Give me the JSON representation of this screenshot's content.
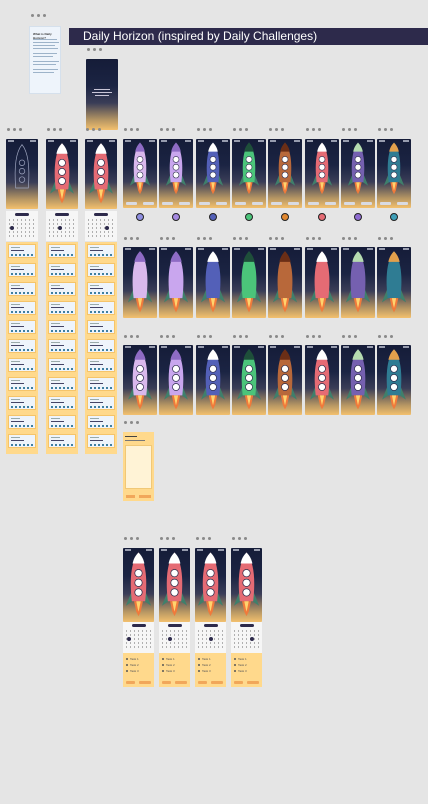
{
  "board": {
    "title": "Daily Horizon (inspired by Daily Challenges)",
    "background": "#e5e5e5",
    "banner_color": "#2d2a4b"
  },
  "intro_doc": {
    "heading": "What is Daily Horizon?"
  },
  "colors": {
    "sky_top": "#151c38",
    "horizon": "#f3c06e",
    "task_panel": "#ffd98c",
    "card": "#eef4fb",
    "dot_blue": "#3f7fa1"
  },
  "rocket_colors": [
    "#d9b8ec",
    "#c9a6ee",
    "#5360b8",
    "#4bc47a",
    "#b8683a",
    "#e56b74",
    "#7560b0",
    "#2f7c93"
  ],
  "nose_colors": [
    "#8e6bc4",
    "#8e6bc4",
    "#ffffff",
    "#1e4f3a",
    "#6b2e16",
    "#ffffff",
    "#b5dcb0",
    "#e3a04c"
  ],
  "coin_colors": [
    "#8e8ee0",
    "#a58ae0",
    "#5360b8",
    "#4bc47a",
    "#e0872f",
    "#e56b74",
    "#8e6bd0",
    "#3f9fb8"
  ],
  "task_labels": [
    "Task 1",
    "Task 2",
    "Task 3"
  ]
}
